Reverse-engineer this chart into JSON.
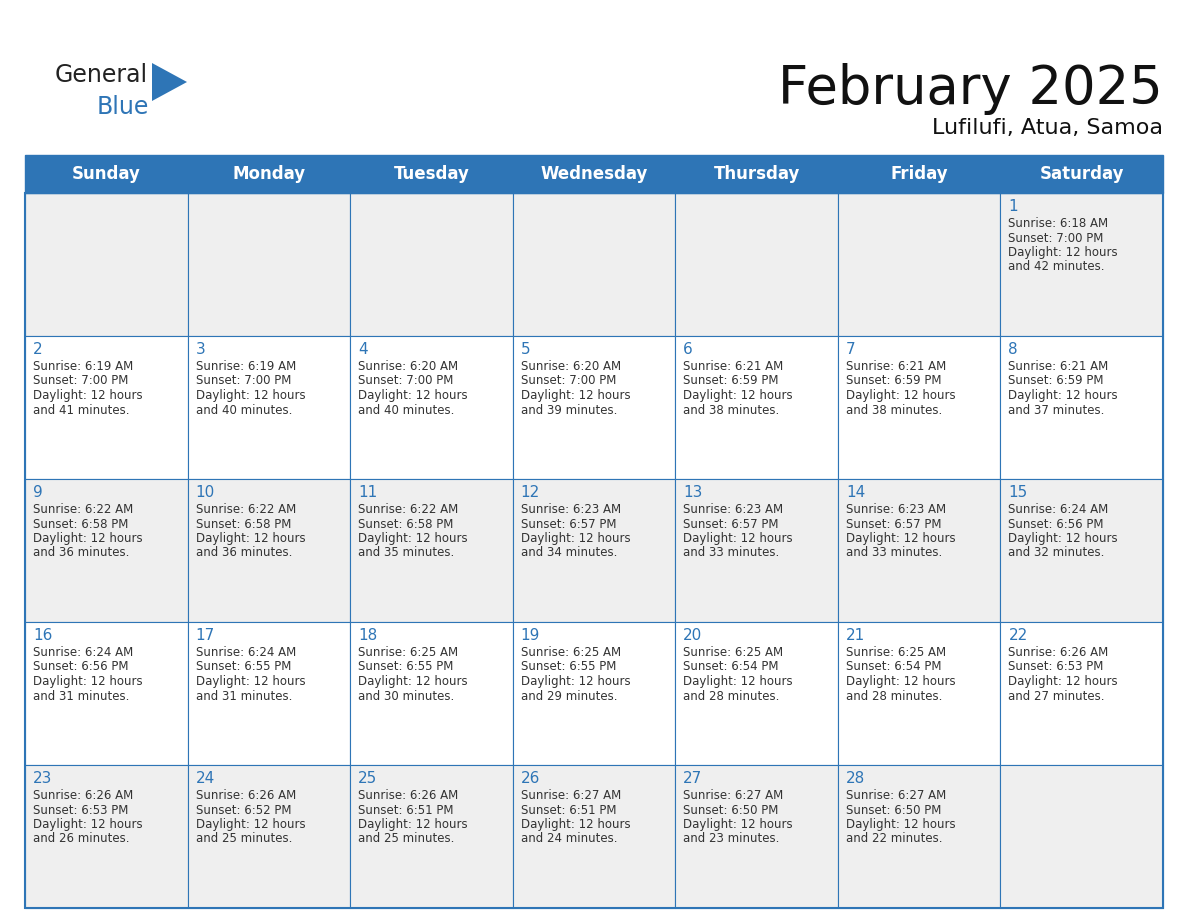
{
  "title": "February 2025",
  "subtitle": "Lufilufi, Atua, Samoa",
  "header_bg": "#2E75B6",
  "header_text": "#FFFFFF",
  "cell_bg_odd": "#EFEFEF",
  "cell_bg_even": "#FFFFFF",
  "border_color": "#2E75B6",
  "day_number_color": "#2E75B6",
  "text_color": "#333333",
  "day_names": [
    "Sunday",
    "Monday",
    "Tuesday",
    "Wednesday",
    "Thursday",
    "Friday",
    "Saturday"
  ],
  "days_data": [
    {
      "day": 1,
      "col": 6,
      "row": 0,
      "sunrise": "6:18 AM",
      "sunset": "7:00 PM",
      "minutes": "42"
    },
    {
      "day": 2,
      "col": 0,
      "row": 1,
      "sunrise": "6:19 AM",
      "sunset": "7:00 PM",
      "minutes": "41"
    },
    {
      "day": 3,
      "col": 1,
      "row": 1,
      "sunrise": "6:19 AM",
      "sunset": "7:00 PM",
      "minutes": "40"
    },
    {
      "day": 4,
      "col": 2,
      "row": 1,
      "sunrise": "6:20 AM",
      "sunset": "7:00 PM",
      "minutes": "40"
    },
    {
      "day": 5,
      "col": 3,
      "row": 1,
      "sunrise": "6:20 AM",
      "sunset": "7:00 PM",
      "minutes": "39"
    },
    {
      "day": 6,
      "col": 4,
      "row": 1,
      "sunrise": "6:21 AM",
      "sunset": "6:59 PM",
      "minutes": "38"
    },
    {
      "day": 7,
      "col": 5,
      "row": 1,
      "sunrise": "6:21 AM",
      "sunset": "6:59 PM",
      "minutes": "38"
    },
    {
      "day": 8,
      "col": 6,
      "row": 1,
      "sunrise": "6:21 AM",
      "sunset": "6:59 PM",
      "minutes": "37"
    },
    {
      "day": 9,
      "col": 0,
      "row": 2,
      "sunrise": "6:22 AM",
      "sunset": "6:58 PM",
      "minutes": "36"
    },
    {
      "day": 10,
      "col": 1,
      "row": 2,
      "sunrise": "6:22 AM",
      "sunset": "6:58 PM",
      "minutes": "36"
    },
    {
      "day": 11,
      "col": 2,
      "row": 2,
      "sunrise": "6:22 AM",
      "sunset": "6:58 PM",
      "minutes": "35"
    },
    {
      "day": 12,
      "col": 3,
      "row": 2,
      "sunrise": "6:23 AM",
      "sunset": "6:57 PM",
      "minutes": "34"
    },
    {
      "day": 13,
      "col": 4,
      "row": 2,
      "sunrise": "6:23 AM",
      "sunset": "6:57 PM",
      "minutes": "33"
    },
    {
      "day": 14,
      "col": 5,
      "row": 2,
      "sunrise": "6:23 AM",
      "sunset": "6:57 PM",
      "minutes": "33"
    },
    {
      "day": 15,
      "col": 6,
      "row": 2,
      "sunrise": "6:24 AM",
      "sunset": "6:56 PM",
      "minutes": "32"
    },
    {
      "day": 16,
      "col": 0,
      "row": 3,
      "sunrise": "6:24 AM",
      "sunset": "6:56 PM",
      "minutes": "31"
    },
    {
      "day": 17,
      "col": 1,
      "row": 3,
      "sunrise": "6:24 AM",
      "sunset": "6:55 PM",
      "minutes": "31"
    },
    {
      "day": 18,
      "col": 2,
      "row": 3,
      "sunrise": "6:25 AM",
      "sunset": "6:55 PM",
      "minutes": "30"
    },
    {
      "day": 19,
      "col": 3,
      "row": 3,
      "sunrise": "6:25 AM",
      "sunset": "6:55 PM",
      "minutes": "29"
    },
    {
      "day": 20,
      "col": 4,
      "row": 3,
      "sunrise": "6:25 AM",
      "sunset": "6:54 PM",
      "minutes": "28"
    },
    {
      "day": 21,
      "col": 5,
      "row": 3,
      "sunrise": "6:25 AM",
      "sunset": "6:54 PM",
      "minutes": "28"
    },
    {
      "day": 22,
      "col": 6,
      "row": 3,
      "sunrise": "6:26 AM",
      "sunset": "6:53 PM",
      "minutes": "27"
    },
    {
      "day": 23,
      "col": 0,
      "row": 4,
      "sunrise": "6:26 AM",
      "sunset": "6:53 PM",
      "minutes": "26"
    },
    {
      "day": 24,
      "col": 1,
      "row": 4,
      "sunrise": "6:26 AM",
      "sunset": "6:52 PM",
      "minutes": "25"
    },
    {
      "day": 25,
      "col": 2,
      "row": 4,
      "sunrise": "6:26 AM",
      "sunset": "6:51 PM",
      "minutes": "25"
    },
    {
      "day": 26,
      "col": 3,
      "row": 4,
      "sunrise": "6:27 AM",
      "sunset": "6:51 PM",
      "minutes": "24"
    },
    {
      "day": 27,
      "col": 4,
      "row": 4,
      "sunrise": "6:27 AM",
      "sunset": "6:50 PM",
      "minutes": "23"
    },
    {
      "day": 28,
      "col": 5,
      "row": 4,
      "sunrise": "6:27 AM",
      "sunset": "6:50 PM",
      "minutes": "22"
    }
  ],
  "num_rows": 5,
  "num_cols": 7,
  "figsize": [
    11.88,
    9.18
  ],
  "dpi": 100,
  "title_fontsize": 38,
  "subtitle_fontsize": 16,
  "header_fontsize": 12,
  "day_num_fontsize": 11,
  "cell_text_fontsize": 8.5,
  "logo_general_fontsize": 17,
  "logo_blue_fontsize": 17
}
